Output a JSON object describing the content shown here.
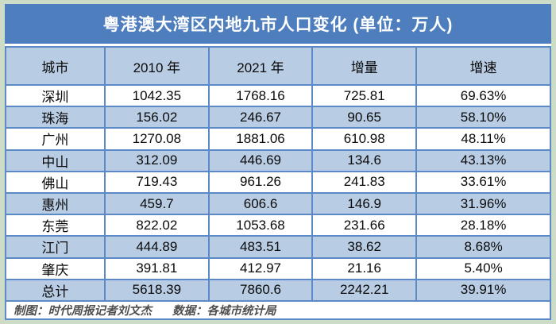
{
  "title": "粤港澳大湾区内地九市人口变化 (单位：万人)",
  "table": {
    "headers": [
      "城市",
      "2010 年",
      "2021 年",
      "增量",
      "增速"
    ],
    "rows": [
      [
        "深圳",
        "1042.35",
        "1768.16",
        "725.81",
        "69.63%"
      ],
      [
        "珠海",
        "156.02",
        "246.67",
        "90.65",
        "58.10%"
      ],
      [
        "广州",
        "1270.08",
        "1881.06",
        "610.98",
        "48.11%"
      ],
      [
        "中山",
        "312.09",
        "446.69",
        "134.6",
        "43.13%"
      ],
      [
        "佛山",
        "719.43",
        "961.26",
        "241.83",
        "33.61%"
      ],
      [
        "惠州",
        "459.7",
        "606.6",
        "146.9",
        "31.96%"
      ],
      [
        "东莞",
        "822.02",
        "1053.68",
        "231.66",
        "28.18%"
      ],
      [
        "江门",
        "444.89",
        "483.51",
        "38.62",
        "8.68%"
      ],
      [
        "肇庆",
        "391.81",
        "412.97",
        "21.16",
        "5.40%"
      ],
      [
        "总计",
        "5618.39",
        "7860.6",
        "2242.21",
        "39.91%"
      ]
    ]
  },
  "footer": {
    "credit": "制图：时代周报记者刘文杰",
    "source": "数据：各城市统计局"
  },
  "colors": {
    "page_background": "#cddcc6",
    "title_background": "#4e7ebd",
    "title_text": "#ffffff",
    "header_row_background": "#b8cce4",
    "alt_row_background": "#b8cce4",
    "row_background": "#ffffff",
    "grid_border": "#5b8ac6",
    "footer_text": "#4f4f4f",
    "data_text": "#0a0a0a"
  },
  "chart_data": {
    "type": "table",
    "title": "粤港澳大湾区内地九市人口变化",
    "unit": "万人",
    "columns": [
      "城市",
      "2010 年",
      "2021 年",
      "增量",
      "增速"
    ],
    "rows": [
      {
        "city": "深圳",
        "pop_2010": 1042.35,
        "pop_2021": 1768.16,
        "increase": 725.81,
        "growth_rate": "69.63%"
      },
      {
        "city": "珠海",
        "pop_2010": 156.02,
        "pop_2021": 246.67,
        "increase": 90.65,
        "growth_rate": "58.10%"
      },
      {
        "city": "广州",
        "pop_2010": 1270.08,
        "pop_2021": 1881.06,
        "increase": 610.98,
        "growth_rate": "48.11%"
      },
      {
        "city": "中山",
        "pop_2010": 312.09,
        "pop_2021": 446.69,
        "increase": 134.6,
        "growth_rate": "43.13%"
      },
      {
        "city": "佛山",
        "pop_2010": 719.43,
        "pop_2021": 961.26,
        "increase": 241.83,
        "growth_rate": "33.61%"
      },
      {
        "city": "惠州",
        "pop_2010": 459.7,
        "pop_2021": 606.6,
        "increase": 146.9,
        "growth_rate": "31.96%"
      },
      {
        "city": "东莞",
        "pop_2010": 822.02,
        "pop_2021": 1053.68,
        "increase": 231.66,
        "growth_rate": "28.18%"
      },
      {
        "city": "江门",
        "pop_2010": 444.89,
        "pop_2021": 483.51,
        "increase": 38.62,
        "growth_rate": "8.68%"
      },
      {
        "city": "肇庆",
        "pop_2010": 391.81,
        "pop_2021": 412.97,
        "increase": 21.16,
        "growth_rate": "5.40%"
      },
      {
        "city": "总计",
        "pop_2010": 5618.39,
        "pop_2021": 7860.6,
        "increase": 2242.21,
        "growth_rate": "39.91%"
      }
    ]
  }
}
